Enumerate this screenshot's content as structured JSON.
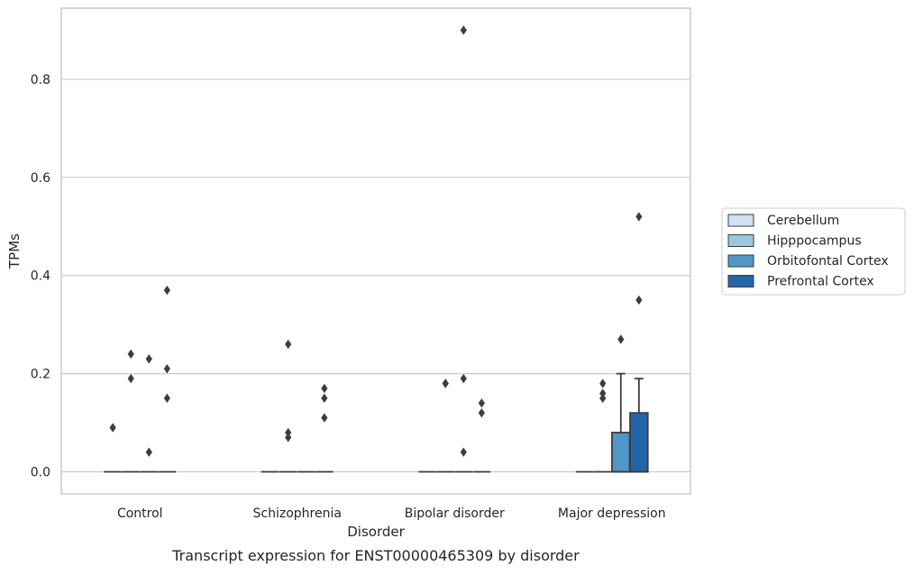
{
  "chart_data": {
    "type": "box",
    "title": "Transcript expression for ENST00000465309 by disorder",
    "xlabel": "Disorder",
    "ylabel": "TPMs",
    "ylim": [
      -0.045,
      0.945
    ],
    "yticks": [
      0.0,
      0.2,
      0.4,
      0.6,
      0.8
    ],
    "ytick_labels": [
      "0.0",
      "0.2",
      "0.4",
      "0.6",
      "0.8"
    ],
    "grid": "horizontal",
    "legend_position": "right",
    "categories": [
      "Control",
      "Schizophrenia",
      "Bipolar disorder",
      "Major depression"
    ],
    "series": [
      {
        "name": "Cerebellum",
        "color": "#d0e1f2",
        "boxes": [
          {
            "q1": 0,
            "median": 0,
            "q3": 0,
            "whisker_low": 0,
            "whisker_high": 0,
            "outliers": [
              0.09
            ]
          },
          {
            "q1": 0,
            "median": 0,
            "q3": 0,
            "whisker_low": 0,
            "whisker_high": 0,
            "outliers": []
          },
          {
            "q1": 0,
            "median": 0,
            "q3": 0,
            "whisker_low": 0,
            "whisker_high": 0,
            "outliers": []
          },
          {
            "q1": 0,
            "median": 0,
            "q3": 0,
            "whisker_low": 0,
            "whisker_high": 0,
            "outliers": []
          }
        ]
      },
      {
        "name": "Hipppocampus",
        "color": "#9ac8e0",
        "boxes": [
          {
            "q1": 0,
            "median": 0,
            "q3": 0,
            "whisker_low": 0,
            "whisker_high": 0,
            "outliers": [
              0.24,
              0.19
            ]
          },
          {
            "q1": 0,
            "median": 0,
            "q3": 0,
            "whisker_low": 0,
            "whisker_high": 0,
            "outliers": [
              0.26,
              0.08,
              0.07
            ]
          },
          {
            "q1": 0,
            "median": 0,
            "q3": 0,
            "whisker_low": 0,
            "whisker_high": 0,
            "outliers": [
              0.18,
              0.18
            ]
          },
          {
            "q1": 0,
            "median": 0,
            "q3": 0,
            "whisker_low": 0,
            "whisker_high": 0,
            "outliers": [
              0.18,
              0.16,
              0.15
            ]
          }
        ]
      },
      {
        "name": "Orbitofontal Cortex",
        "color": "#5096c8",
        "boxes": [
          {
            "q1": 0,
            "median": 0,
            "q3": 0,
            "whisker_low": 0,
            "whisker_high": 0,
            "outliers": [
              0.23,
              0.04
            ]
          },
          {
            "q1": 0,
            "median": 0,
            "q3": 0,
            "whisker_low": 0,
            "whisker_high": 0,
            "outliers": []
          },
          {
            "q1": 0,
            "median": 0,
            "q3": 0,
            "whisker_low": 0,
            "whisker_high": 0,
            "outliers": [
              0.9,
              0.19,
              0.04
            ]
          },
          {
            "q1": 0,
            "median": 0,
            "q3": 0.08,
            "whisker_low": 0,
            "whisker_high": 0.2,
            "outliers": [
              0.27
            ]
          }
        ]
      },
      {
        "name": "Prefrontal Cortex",
        "color": "#2465a8",
        "boxes": [
          {
            "q1": 0,
            "median": 0,
            "q3": 0,
            "whisker_low": 0,
            "whisker_high": 0,
            "outliers": [
              0.37,
              0.21,
              0.15
            ]
          },
          {
            "q1": 0,
            "median": 0,
            "q3": 0,
            "whisker_low": 0,
            "whisker_high": 0,
            "outliers": [
              0.17,
              0.15,
              0.11
            ]
          },
          {
            "q1": 0,
            "median": 0,
            "q3": 0,
            "whisker_low": 0,
            "whisker_high": 0,
            "outliers": [
              0.14,
              0.12
            ]
          },
          {
            "q1": 0,
            "median": 0,
            "q3": 0.12,
            "whisker_low": 0,
            "whisker_high": 0.19,
            "outliers": [
              0.52,
              0.35
            ]
          }
        ]
      }
    ]
  }
}
